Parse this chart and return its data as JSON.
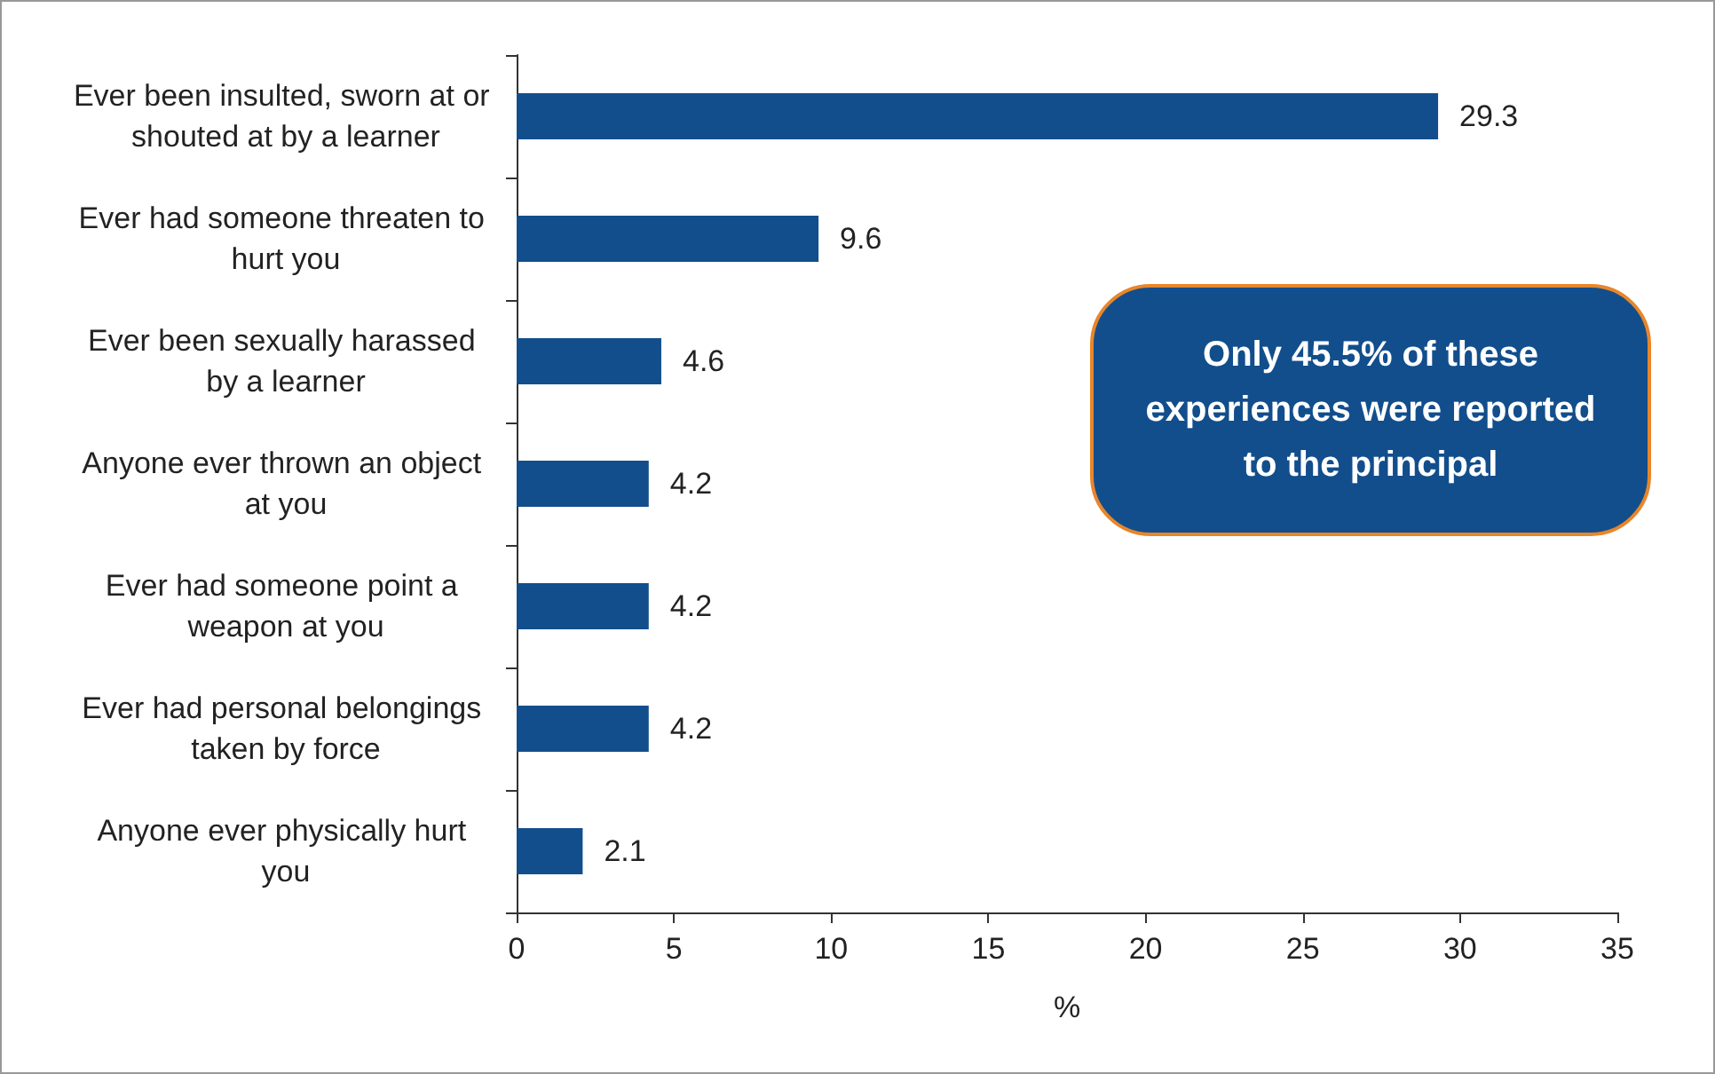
{
  "chart_data": {
    "type": "bar",
    "orientation": "horizontal",
    "xlabel": "%",
    "categories": [
      "Ever been insulted, sworn at or shouted at by a learner",
      "Ever had someone threaten to hurt you",
      "Ever been sexually harassed by a learner",
      "Anyone ever thrown an object at you",
      "Ever had someone point a weapon at you",
      "Ever had personal belongings taken by force",
      "Anyone ever physically hurt you"
    ],
    "values": [
      29.3,
      9.6,
      4.6,
      4.2,
      4.2,
      4.2,
      2.1
    ],
    "color": "#124e8c",
    "xlim": [
      0,
      35
    ],
    "xticks": [
      0,
      5,
      10,
      15,
      20,
      25,
      30,
      35
    ],
    "data_labels": true,
    "grid": false,
    "annotations": [
      "Only 45.5% of these experiences were reported to the principal"
    ]
  }
}
